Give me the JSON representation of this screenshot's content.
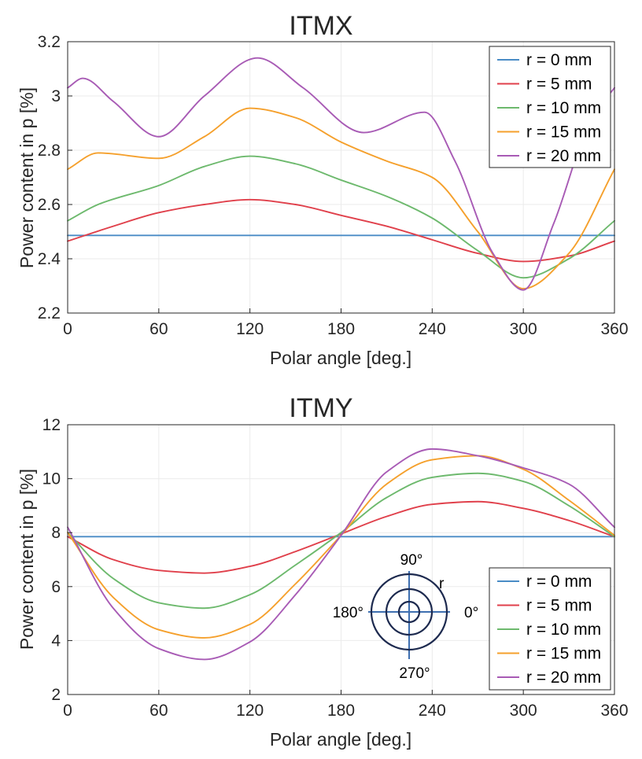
{
  "chart_data": [
    {
      "type": "line",
      "title": "ITMX",
      "xlabel": "Polar angle [deg.]",
      "ylabel": "Power content in p [%]",
      "xlim": [
        0,
        360
      ],
      "ylim": [
        2.2,
        3.2
      ],
      "xticks": [
        0,
        60,
        120,
        180,
        240,
        300,
        360
      ],
      "xtick_labels": [
        "0",
        "60",
        "120",
        "180",
        "240",
        "300",
        "360"
      ],
      "yticks": [
        2.2,
        2.4,
        2.6,
        2.8,
        3.0,
        3.2
      ],
      "ytick_labels": [
        "2.2",
        "2.4",
        "2.6",
        "2.8",
        "3",
        "3.2"
      ],
      "grid": true,
      "legend_position": "top-right",
      "series": [
        {
          "name": "r = 0 mm",
          "color": "#4a8cc6",
          "x": [
            0,
            360
          ],
          "y": [
            2.486,
            2.486
          ]
        },
        {
          "name": "r = 5 mm",
          "color": "#e0404b",
          "x": [
            0,
            30,
            60,
            90,
            120,
            150,
            180,
            210,
            240,
            270,
            300,
            330,
            360
          ],
          "y": [
            2.465,
            2.52,
            2.57,
            2.6,
            2.618,
            2.6,
            2.56,
            2.52,
            2.47,
            2.42,
            2.39,
            2.41,
            2.465
          ]
        },
        {
          "name": "r = 10 mm",
          "color": "#6db96d",
          "x": [
            0,
            20,
            60,
            90,
            120,
            150,
            180,
            210,
            240,
            270,
            300,
            330,
            360
          ],
          "y": [
            2.54,
            2.6,
            2.67,
            2.74,
            2.778,
            2.75,
            2.69,
            2.63,
            2.55,
            2.43,
            2.33,
            2.4,
            2.54
          ]
        },
        {
          "name": "r = 15 mm",
          "color": "#f5a02c",
          "x": [
            0,
            20,
            60,
            90,
            120,
            150,
            180,
            210,
            240,
            270,
            300,
            330,
            360
          ],
          "y": [
            2.73,
            2.79,
            2.77,
            2.85,
            2.955,
            2.92,
            2.83,
            2.76,
            2.7,
            2.5,
            2.29,
            2.42,
            2.73
          ]
        },
        {
          "name": "r = 20 mm",
          "color": "#a85bb5",
          "x": [
            0,
            10,
            30,
            60,
            90,
            125,
            155,
            195,
            235,
            255,
            280,
            300,
            320,
            345,
            360
          ],
          "y": [
            3.03,
            3.065,
            2.98,
            2.85,
            3.0,
            3.14,
            3.03,
            2.865,
            2.94,
            2.76,
            2.42,
            2.285,
            2.53,
            2.92,
            3.03
          ]
        }
      ]
    },
    {
      "type": "line",
      "title": "ITMY",
      "xlabel": "Polar angle [deg.]",
      "ylabel": "Power content in p [%]",
      "xlim": [
        0,
        360
      ],
      "ylim": [
        2,
        12
      ],
      "xticks": [
        0,
        60,
        120,
        180,
        240,
        300,
        360
      ],
      "xtick_labels": [
        "0",
        "60",
        "120",
        "180",
        "240",
        "300",
        "360"
      ],
      "yticks": [
        2,
        4,
        6,
        8,
        10,
        12
      ],
      "ytick_labels": [
        "2",
        "4",
        "6",
        "8",
        "10",
        "12"
      ],
      "grid": true,
      "legend_position": "bottom-right",
      "series": [
        {
          "name": "r = 0 mm",
          "color": "#4a8cc6",
          "x": [
            0,
            360
          ],
          "y": [
            7.85,
            7.85
          ]
        },
        {
          "name": "r = 5 mm",
          "color": "#e0404b",
          "x": [
            0,
            30,
            60,
            90,
            120,
            150,
            180,
            210,
            240,
            270,
            300,
            330,
            360
          ],
          "y": [
            7.85,
            7.0,
            6.6,
            6.5,
            6.75,
            7.3,
            7.95,
            8.6,
            9.05,
            9.15,
            8.9,
            8.45,
            7.85
          ]
        },
        {
          "name": "r = 10 mm",
          "color": "#6db96d",
          "x": [
            0,
            30,
            60,
            90,
            120,
            150,
            180,
            210,
            240,
            270,
            300,
            330,
            360
          ],
          "y": [
            8.0,
            6.3,
            5.4,
            5.2,
            5.7,
            6.8,
            8.0,
            9.3,
            10.05,
            10.2,
            9.9,
            9.0,
            7.85
          ]
        },
        {
          "name": "r = 15 mm",
          "color": "#f5a02c",
          "x": [
            0,
            30,
            60,
            90,
            120,
            150,
            180,
            210,
            240,
            270,
            300,
            330,
            360
          ],
          "y": [
            8.0,
            5.6,
            4.4,
            4.1,
            4.6,
            6.1,
            7.9,
            9.8,
            10.7,
            10.85,
            10.35,
            9.2,
            7.9
          ]
        },
        {
          "name": "r = 20 mm",
          "color": "#a85bb5",
          "x": [
            0,
            30,
            60,
            90,
            120,
            150,
            180,
            210,
            240,
            270,
            300,
            330,
            360
          ],
          "y": [
            8.2,
            5.2,
            3.7,
            3.3,
            3.95,
            5.7,
            7.9,
            10.25,
            11.1,
            10.85,
            10.4,
            9.8,
            8.2
          ]
        }
      ],
      "inset": {
        "top_label": "90°",
        "bottom_label": "270°",
        "left_label": "180°",
        "right_label": "0°",
        "radius_label": "r",
        "line_color": "#3e6fb0",
        "ring_color": "#1d2a4f"
      }
    }
  ]
}
